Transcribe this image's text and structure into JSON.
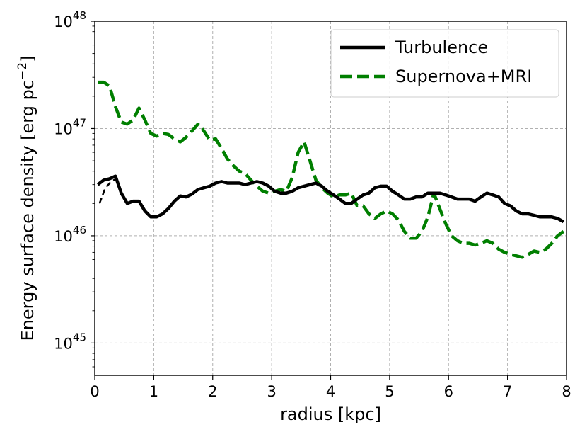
{
  "chart_data": {
    "type": "line",
    "xlabel": "radius [kpc]",
    "ylabel": "Energy surface density [erg pc",
    "ylabel_sup": "−2",
    "ylabel_close": "]",
    "xlim": [
      0,
      8
    ],
    "ylim": [
      5e+44,
      1e+48
    ],
    "yscale": "log",
    "grid": true,
    "legend_position": "top-right",
    "x_ticks": [
      {
        "value": 0,
        "label": "0"
      },
      {
        "value": 1,
        "label": "1"
      },
      {
        "value": 2,
        "label": "2"
      },
      {
        "value": 3,
        "label": "3"
      },
      {
        "value": 4,
        "label": "4"
      },
      {
        "value": 5,
        "label": "5"
      },
      {
        "value": 6,
        "label": "6"
      },
      {
        "value": 7,
        "label": "7"
      },
      {
        "value": 8,
        "label": "8"
      }
    ],
    "y_ticks": [
      {
        "value": 1e+45,
        "base": "10",
        "exp": "45"
      },
      {
        "value": 1e+46,
        "base": "10",
        "exp": "46"
      },
      {
        "value": 1e+47,
        "base": "10",
        "exp": "47"
      },
      {
        "value": 1e+48,
        "base": "10",
        "exp": "48"
      }
    ],
    "series": [
      {
        "name": "Turbulence",
        "color": "#000000",
        "style": "solid",
        "x": [
          0.05,
          0.15,
          0.25,
          0.35,
          0.45,
          0.55,
          0.65,
          0.75,
          0.85,
          0.95,
          1.05,
          1.15,
          1.25,
          1.35,
          1.45,
          1.55,
          1.65,
          1.75,
          1.85,
          1.95,
          2.05,
          2.15,
          2.25,
          2.35,
          2.45,
          2.55,
          2.65,
          2.75,
          2.85,
          2.95,
          3.05,
          3.15,
          3.25,
          3.35,
          3.45,
          3.55,
          3.65,
          3.75,
          3.85,
          3.95,
          4.05,
          4.15,
          4.25,
          4.35,
          4.45,
          4.55,
          4.65,
          4.75,
          4.85,
          4.95,
          5.05,
          5.15,
          5.25,
          5.35,
          5.45,
          5.55,
          5.65,
          5.75,
          5.85,
          5.95,
          6.05,
          6.15,
          6.25,
          6.35,
          6.45,
          6.55,
          6.65,
          6.75,
          6.85,
          6.95,
          7.05,
          7.15,
          7.25,
          7.35,
          7.45,
          7.55,
          7.65,
          7.75,
          7.85,
          7.95
        ],
        "y": [
          3e+46,
          3.3e+46,
          3.4e+46,
          3.6e+46,
          2.5e+46,
          2e+46,
          2.1e+46,
          2.1e+46,
          1.7e+46,
          1.5e+46,
          1.5e+46,
          1.6e+46,
          1.8e+46,
          2.1e+46,
          2.35e+46,
          2.3e+46,
          2.45e+46,
          2.7e+46,
          2.8e+46,
          2.9e+46,
          3.1e+46,
          3.2e+46,
          3.1e+46,
          3.1e+46,
          3.1e+46,
          3e+46,
          3.1e+46,
          3.2e+46,
          3.1e+46,
          2.9e+46,
          2.6e+46,
          2.5e+46,
          2.5e+46,
          2.6e+46,
          2.8e+46,
          2.9e+46,
          3e+46,
          3.1e+46,
          2.9e+46,
          2.6e+46,
          2.4e+46,
          2.2e+46,
          2e+46,
          2e+46,
          2.2e+46,
          2.4e+46,
          2.5e+46,
          2.8e+46,
          2.9e+46,
          2.9e+46,
          2.6e+46,
          2.4e+46,
          2.2e+46,
          2.2e+46,
          2.3e+46,
          2.3e+46,
          2.5e+46,
          2.5e+46,
          2.5e+46,
          2.4e+46,
          2.3e+46,
          2.2e+46,
          2.2e+46,
          2.2e+46,
          2.1e+46,
          2.3e+46,
          2.5e+46,
          2.4e+46,
          2.3e+46,
          2e+46,
          1.9e+46,
          1.7e+46,
          1.6e+46,
          1.6e+46,
          1.55e+46,
          1.5e+46,
          1.5e+46,
          1.5e+46,
          1.45e+46,
          1.35e+46
        ]
      },
      {
        "name": "Supernova+MRI",
        "color": "#007f00",
        "style": "dashed",
        "x": [
          0.05,
          0.15,
          0.25,
          0.35,
          0.45,
          0.55,
          0.65,
          0.75,
          0.85,
          0.95,
          1.05,
          1.15,
          1.25,
          1.35,
          1.45,
          1.55,
          1.65,
          1.75,
          1.85,
          1.95,
          2.05,
          2.15,
          2.25,
          2.35,
          2.45,
          2.55,
          2.65,
          2.75,
          2.85,
          2.95,
          3.05,
          3.15,
          3.25,
          3.35,
          3.45,
          3.55,
          3.65,
          3.75,
          3.85,
          3.95,
          4.05,
          4.15,
          4.25,
          4.35,
          4.45,
          4.55,
          4.65,
          4.75,
          4.85,
          4.95,
          5.05,
          5.15,
          5.25,
          5.35,
          5.45,
          5.55,
          5.65,
          5.75,
          5.85,
          5.95,
          6.05,
          6.15,
          6.25,
          6.35,
          6.45,
          6.55,
          6.65,
          6.75,
          6.85,
          6.95,
          7.05,
          7.15,
          7.25,
          7.35,
          7.45,
          7.55,
          7.65,
          7.75,
          7.85,
          7.95
        ],
        "y": [
          2.7e+47,
          2.7e+47,
          2.5e+47,
          1.6e+47,
          1.15e+47,
          1.1e+47,
          1.2e+47,
          1.55e+47,
          1.2e+47,
          9e+46,
          8.5e+46,
          9e+46,
          8.8e+46,
          8e+46,
          7.5e+46,
          8.3e+46,
          9.5e+46,
          1.1e+47,
          9.5e+46,
          7.8e+46,
          8e+46,
          6.5e+46,
          5.2e+46,
          4.5e+46,
          4e+46,
          3.8e+46,
          3.3e+46,
          2.9e+46,
          2.6e+46,
          2.5e+46,
          2.6e+46,
          2.7e+46,
          2.6e+46,
          3.5e+46,
          6e+46,
          7.5e+46,
          5e+46,
          3.3e+46,
          2.8e+46,
          2.5e+46,
          2.3e+46,
          2.4e+46,
          2.4e+46,
          2.5e+46,
          1.9e+46,
          1.9e+46,
          1.6e+46,
          1.45e+46,
          1.6e+46,
          1.7e+46,
          1.6e+46,
          1.4e+46,
          1.1e+46,
          9.5e+45,
          9.5e+45,
          1.1e+46,
          1.5e+46,
          2.5e+46,
          1.8e+46,
          1.3e+46,
          1e+46,
          9e+45,
          8.5e+45,
          8.5e+45,
          8.2e+45,
          8.5e+45,
          9e+45,
          8.5e+45,
          7.5e+45,
          7e+45,
          6.7e+45,
          6.5e+45,
          6.3e+45,
          6.7e+45,
          7.2e+45,
          7e+45,
          7.5e+45,
          8.5e+45,
          1e+46,
          1.1e+46
        ]
      }
    ],
    "inner_segment": {
      "style": "dashed",
      "color": "#000000",
      "x": [
        0.08,
        0.18,
        0.28,
        0.36
      ],
      "y": [
        2e+46,
        2.8e+46,
        3.2e+46,
        3.4e+46
      ]
    }
  }
}
